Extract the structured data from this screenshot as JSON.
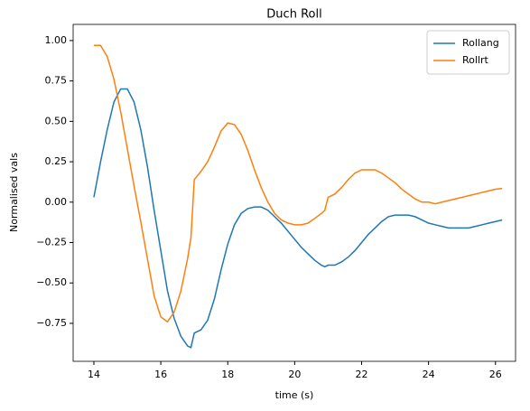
{
  "chart_data": {
    "type": "line",
    "title": "Duch Roll",
    "xlabel": "time (s)",
    "ylabel": "Normalised vals",
    "x": [
      14.0,
      14.2,
      14.4,
      14.6,
      14.8,
      15.0,
      15.2,
      15.4,
      15.6,
      15.8,
      16.0,
      16.2,
      16.4,
      16.6,
      16.8,
      16.9,
      17.0,
      17.2,
      17.4,
      17.6,
      17.8,
      18.0,
      18.2,
      18.4,
      18.6,
      18.8,
      19.0,
      19.2,
      19.4,
      19.6,
      19.8,
      20.0,
      20.2,
      20.4,
      20.6,
      20.8,
      20.9,
      21.0,
      21.2,
      21.4,
      21.6,
      21.8,
      22.0,
      22.2,
      22.4,
      22.6,
      22.8,
      23.0,
      23.2,
      23.4,
      23.6,
      23.8,
      24.0,
      24.2,
      24.4,
      24.6,
      24.8,
      25.0,
      25.2,
      25.4,
      25.6,
      25.8,
      26.0,
      26.2
    ],
    "series": [
      {
        "name": "Rollang",
        "color": "#1f77b4",
        "values": [
          0.03,
          0.25,
          0.45,
          0.62,
          0.7,
          0.7,
          0.62,
          0.45,
          0.22,
          -0.05,
          -0.3,
          -0.55,
          -0.72,
          -0.83,
          -0.89,
          -0.9,
          -0.81,
          -0.79,
          -0.73,
          -0.6,
          -0.42,
          -0.26,
          -0.14,
          -0.07,
          -0.04,
          -0.03,
          -0.03,
          -0.05,
          -0.09,
          -0.13,
          -0.18,
          -0.23,
          -0.28,
          -0.32,
          -0.36,
          -0.39,
          -0.4,
          -0.39,
          -0.39,
          -0.37,
          -0.34,
          -0.3,
          -0.25,
          -0.2,
          -0.16,
          -0.12,
          -0.09,
          -0.08,
          -0.08,
          -0.08,
          -0.09,
          -0.11,
          -0.13,
          -0.14,
          -0.15,
          -0.16,
          -0.16,
          -0.16,
          -0.16,
          -0.15,
          -0.14,
          -0.13,
          -0.12,
          -0.11
        ]
      },
      {
        "name": "Rollrt",
        "color": "#ff7f0e",
        "values": [
          0.97,
          0.97,
          0.9,
          0.76,
          0.56,
          0.33,
          0.1,
          -0.12,
          -0.35,
          -0.58,
          -0.71,
          -0.74,
          -0.68,
          -0.55,
          -0.35,
          -0.22,
          0.14,
          0.19,
          0.25,
          0.34,
          0.44,
          0.49,
          0.48,
          0.42,
          0.32,
          0.2,
          0.09,
          0.0,
          -0.07,
          -0.11,
          -0.13,
          -0.14,
          -0.14,
          -0.13,
          -0.1,
          -0.07,
          -0.05,
          0.03,
          0.05,
          0.09,
          0.14,
          0.18,
          0.2,
          0.2,
          0.2,
          0.18,
          0.15,
          0.12,
          0.08,
          0.05,
          0.02,
          0.0,
          0.0,
          -0.01,
          0.0,
          0.01,
          0.02,
          0.03,
          0.04,
          0.05,
          0.06,
          0.07,
          0.08,
          0.085
        ]
      }
    ],
    "xlim": [
      13.38,
      26.6
    ],
    "ylim": [
      -0.985,
      1.1
    ],
    "xticks": [
      14,
      16,
      18,
      20,
      22,
      24,
      26
    ],
    "yticks": [
      {
        "value": -0.75,
        "label": "−0.75"
      },
      {
        "value": -0.5,
        "label": "−0.50"
      },
      {
        "value": -0.25,
        "label": "−0.25"
      },
      {
        "value": 0,
        "label": "0.00"
      },
      {
        "value": 0.25,
        "label": "0.25"
      },
      {
        "value": 0.5,
        "label": "0.50"
      },
      {
        "value": 0.75,
        "label": "0.75"
      },
      {
        "value": 1,
        "label": "1.00"
      }
    ],
    "legend": "upper right",
    "grid": false
  }
}
